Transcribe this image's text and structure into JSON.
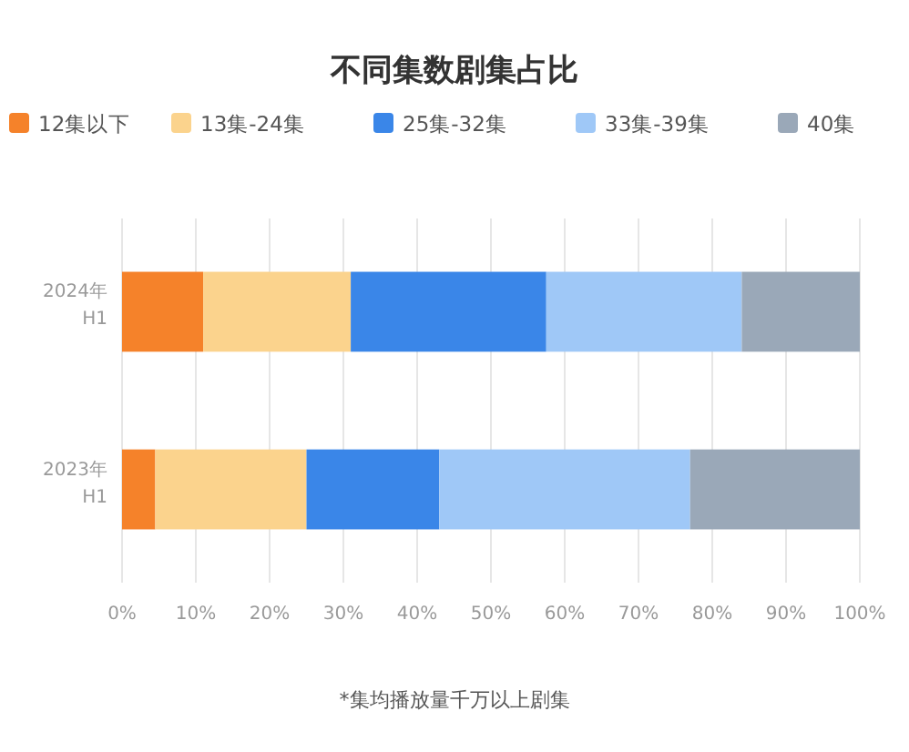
{
  "chart_data": {
    "type": "bar",
    "title": "不同集数剧集占比",
    "orientation": "horizontal",
    "stacked": true,
    "categories": [
      "2024年\nH1",
      "2023年\nH1"
    ],
    "series": [
      {
        "name": "12集以下",
        "color": "#f5822a",
        "values": [
          11,
          4.5
        ]
      },
      {
        "name": "13集-24集",
        "color": "#fbd38d",
        "values": [
          20,
          20.5
        ]
      },
      {
        "name": "25集-32集",
        "color": "#3a86e8",
        "values": [
          26.5,
          18
        ]
      },
      {
        "name": "33集-39集",
        "color": "#9fc8f7",
        "values": [
          26.5,
          34
        ]
      },
      {
        "name": "40集",
        "color": "#9aa8b8",
        "values": [
          16,
          23
        ]
      }
    ],
    "xlim": [
      0,
      100
    ],
    "xticks": [
      {
        "value": 0,
        "label": "0%"
      },
      {
        "value": 10,
        "label": "10%"
      },
      {
        "value": 20,
        "label": "20%"
      },
      {
        "value": 30,
        "label": "30%"
      },
      {
        "value": 40,
        "label": "40%"
      },
      {
        "value": 50,
        "label": "50%"
      },
      {
        "value": 60,
        "label": "60%"
      },
      {
        "value": 70,
        "label": "70%"
      },
      {
        "value": 80,
        "label": "80%"
      },
      {
        "value": 90,
        "label": "90%"
      },
      {
        "value": 100,
        "label": "100%"
      }
    ],
    "grid": "x",
    "legend": "top",
    "annotations": [
      "*集均播放量千万以上剧集"
    ]
  }
}
